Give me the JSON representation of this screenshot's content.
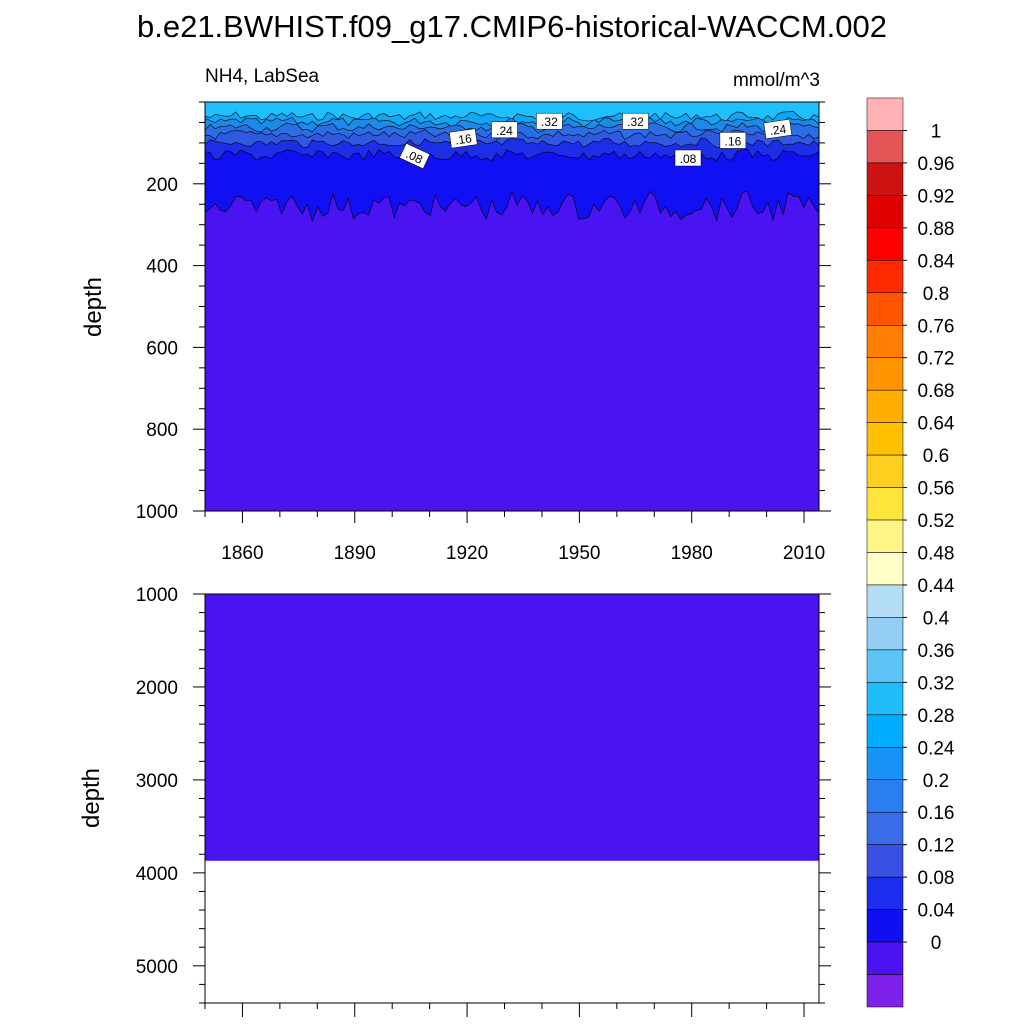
{
  "title": "b.e21.BWHIST.f09_g17.CMIP6-historical-WACCM.002",
  "subtitle_left": "NH4, LabSea",
  "subtitle_right": "mmol/m^3",
  "chart_data": [
    {
      "type": "heatmap",
      "panel": "upper",
      "variable": "NH4",
      "region": "LabSea",
      "units": "mmol/m^3",
      "ylabel": "depth",
      "ylim": [
        1000,
        0
      ],
      "xlim": [
        1850,
        2014
      ],
      "x_ticks": [
        1860,
        1890,
        1920,
        1950,
        1980,
        2010
      ],
      "y_ticks": [
        200,
        400,
        600,
        800,
        1000
      ],
      "contour_labels": [
        {
          "text": ".08",
          "x": 1906,
          "y": 132,
          "rotation": 25
        },
        {
          "text": ".16",
          "x": 1919,
          "y": 89,
          "rotation": -8
        },
        {
          "text": ".24",
          "x": 1930,
          "y": 68,
          "rotation": 0
        },
        {
          "text": ".32",
          "x": 1942,
          "y": 47,
          "rotation": 0
        },
        {
          "text": ".32",
          "x": 1965,
          "y": 47,
          "rotation": 0
        },
        {
          "text": ".08",
          "x": 1979,
          "y": 137,
          "rotation": 0
        },
        {
          "text": ".16",
          "x": 1991,
          "y": 94,
          "rotation": 0
        },
        {
          "text": ".24",
          "x": 2003,
          "y": 66,
          "rotation": -8
        }
      ],
      "layers": [
        {
          "level": "0.28-0.32",
          "top": 15,
          "bottom": 35,
          "color": "#1ec0ff"
        },
        {
          "level": "0.24-0.28",
          "top": 35,
          "bottom": 48,
          "color": "#0ea6f5"
        },
        {
          "level": "0.20-0.24",
          "top": 48,
          "bottom": 62,
          "color": "#1b8ae8"
        },
        {
          "level": "0.16-0.20",
          "top": 62,
          "bottom": 80,
          "color": "#2a6ee6"
        },
        {
          "level": "0.12-0.16",
          "top": 80,
          "bottom": 100,
          "color": "#3158e0"
        },
        {
          "level": "0.08-0.12",
          "top": 100,
          "bottom": 130,
          "color": "#1c2ee8"
        },
        {
          "level": "0.04-0.08",
          "top": 130,
          "bottom": 255,
          "color": "#1010f2"
        },
        {
          "level": "0-0.04",
          "top": 255,
          "bottom": 1000,
          "color": "#4a14f2"
        }
      ]
    },
    {
      "type": "heatmap",
      "panel": "lower",
      "ylabel": "depth",
      "ylim": [
        5400,
        1000
      ],
      "x_ticks": [
        1860,
        1890,
        1920,
        1950,
        1980,
        2010
      ],
      "y_ticks": [
        1000,
        2000,
        3000,
        4000,
        5000
      ],
      "fill": {
        "level": "0-0.04",
        "top": 1000,
        "bottom": 3870,
        "color": "#4a14f2"
      }
    }
  ],
  "colorbar": {
    "labels": [
      "1",
      "0.96",
      "0.92",
      "0.88",
      "0.84",
      "0.8",
      "0.76",
      "0.72",
      "0.68",
      "0.64",
      "0.6",
      "0.56",
      "0.52",
      "0.48",
      "0.44",
      "0.4",
      "0.36",
      "0.32",
      "0.28",
      "0.24",
      "0.2",
      "0.16",
      "0.12",
      "0.08",
      "0.04",
      "0"
    ],
    "colors": [
      "#ffb3b5",
      "#e55457",
      "#cd1212",
      "#e00000",
      "#ff0000",
      "#ff2a00",
      "#ff5500",
      "#ff7d00",
      "#ff9300",
      "#ffad00",
      "#ffc000",
      "#ffcf20",
      "#ffe43c",
      "#fff584",
      "#ffffc8",
      "#b4ddf6",
      "#94cef4",
      "#5ec4f5",
      "#1fbdfb",
      "#00acff",
      "#1a93f8",
      "#2a7ff0",
      "#3a6be8",
      "#3a50e4",
      "#1c2ded",
      "#0f0ff2",
      "#4a14f2",
      "#7d20ec"
    ]
  }
}
